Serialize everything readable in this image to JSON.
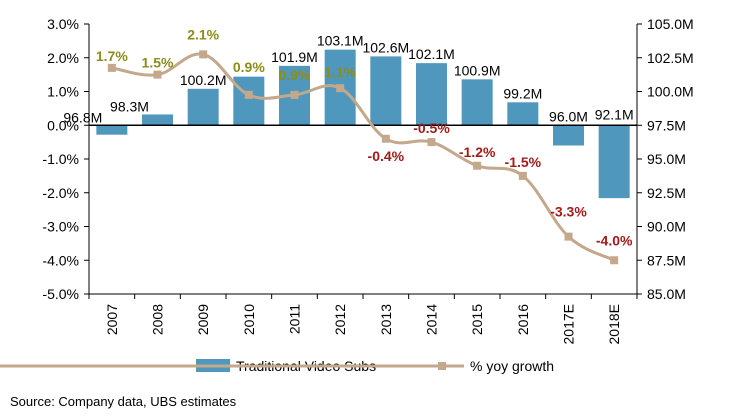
{
  "chart_data": {
    "type": "bar+line",
    "categories": [
      "2007",
      "2008",
      "2009",
      "2010",
      "2011",
      "2012",
      "2013",
      "2014",
      "2015",
      "2016",
      "2017E",
      "2018E"
    ],
    "series": [
      {
        "name": "Traditional Video Subs",
        "type": "bar",
        "axis": "right",
        "values": [
          96.8,
          98.3,
          100.2,
          101.1,
          101.9,
          103.1,
          102.6,
          102.1,
          100.9,
          99.2,
          96.0,
          92.1
        ],
        "labels": [
          "96.8M",
          "98.3M",
          "100.2M",
          "",
          "101.9M",
          "103.1M",
          "102.6M",
          "102.1M",
          "100.9M",
          "99.2M",
          "96.0M",
          "92.1M"
        ],
        "color": "#4f97bd"
      },
      {
        "name": "% yoy growth",
        "type": "line",
        "axis": "left",
        "values": [
          1.7,
          1.5,
          2.1,
          0.9,
          0.9,
          1.1,
          -0.4,
          -0.5,
          -1.2,
          -1.5,
          -3.3,
          -4.0
        ],
        "labels": [
          "1.7%",
          "1.5%",
          "2.1%",
          "0.9%",
          "0.9%",
          "1.1%",
          "-0.4%",
          "-0.5%",
          "-1.2%",
          "-1.5%",
          "-3.3%",
          "-4.0%"
        ],
        "color": "#c3a88c",
        "positive_label_color": "#8d8d1a",
        "negative_label_color": "#a31a1a"
      }
    ],
    "left_axis": {
      "min": -5.0,
      "max": 3.0,
      "step": 1.0,
      "ticks": [
        "3.0%",
        "2.0%",
        "1.0%",
        "0.0%",
        "-1.0%",
        "-2.0%",
        "-3.0%",
        "-4.0%",
        "-5.0%"
      ]
    },
    "right_axis": {
      "min": 85.0,
      "max": 105.0,
      "step": 2.5,
      "ticks": [
        "105.0M",
        "102.5M",
        "100.0M",
        "97.5M",
        "95.0M",
        "92.5M",
        "90.0M",
        "87.5M",
        "85.0M"
      ]
    },
    "grid": false,
    "legend_position": "bottom"
  },
  "source": "Source:  Company data, UBS estimates"
}
